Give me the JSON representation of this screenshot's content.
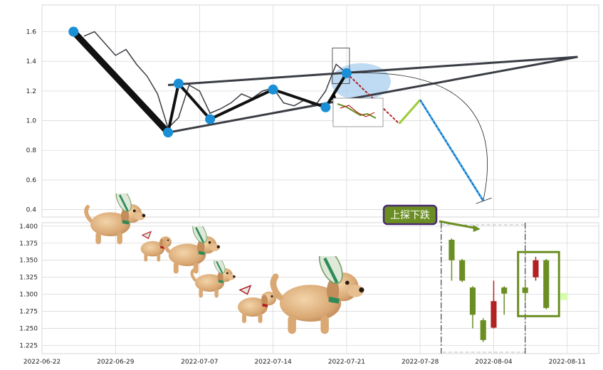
{
  "colors": {
    "grid": "#d9d9d9",
    "panel_bg": "#ffffff",
    "price_line": "#3a3d45",
    "zigzag": "#111111",
    "pivot": "#1b8fd6",
    "candle_up": "#6b8e23",
    "candle_down": "#b22222",
    "annot_bg": "#6b8e23",
    "annot_border": "#4b2a6e",
    "highlight": "#6b8e23",
    "bubble": "#a9cdef"
  },
  "icons": [
    "dog-sticker-icon",
    "bee-wing-icon",
    "mini-chart-thumbnail-icon"
  ],
  "chart_data": [
    {
      "type": "line",
      "panel": "top",
      "ylim": [
        0.35,
        1.78
      ],
      "yticks": [
        "0.4",
        "0.6",
        "0.8",
        "1.0",
        "1.2",
        "1.4",
        "1.6"
      ],
      "grid": true,
      "xlim": [
        "2022-06-22",
        "2022-08-14"
      ],
      "price_series": {
        "x": [
          "2022-06-26",
          "2022-06-27",
          "2022-06-28",
          "2022-06-29",
          "2022-06-30",
          "2022-07-01",
          "2022-07-02",
          "2022-07-03",
          "2022-07-04",
          "2022-07-05",
          "2022-07-06",
          "2022-07-07",
          "2022-07-08",
          "2022-07-09",
          "2022-07-10",
          "2022-07-11",
          "2022-07-12",
          "2022-07-13",
          "2022-07-14",
          "2022-07-15",
          "2022-07-16",
          "2022-07-17",
          "2022-07-18",
          "2022-07-19",
          "2022-07-20",
          "2022-07-21"
        ],
        "values": [
          1.57,
          1.6,
          1.52,
          1.44,
          1.48,
          1.38,
          1.3,
          1.18,
          0.95,
          1.02,
          1.24,
          1.2,
          1.05,
          1.08,
          1.12,
          1.18,
          1.15,
          1.2,
          1.22,
          1.12,
          1.1,
          1.14,
          1.1,
          1.2,
          1.38,
          1.32
        ]
      },
      "zigzag": {
        "x": [
          "2022-06-25",
          "2022-07-04",
          "2022-07-05",
          "2022-07-08",
          "2022-07-14",
          "2022-07-19",
          "2022-07-21"
        ],
        "values": [
          1.6,
          0.92,
          1.25,
          1.01,
          1.21,
          1.09,
          1.32
        ]
      },
      "trend_lines": [
        {
          "x": [
            "2022-07-04",
            "2022-08-12"
          ],
          "values": [
            1.24,
            1.43
          ]
        },
        {
          "x": [
            "2022-07-04",
            "2022-08-12"
          ],
          "values": [
            0.92,
            1.43
          ]
        }
      ],
      "projection": {
        "x": [
          "2022-07-21",
          "2022-07-26",
          "2022-07-28",
          "2022-08-03"
        ],
        "values": [
          1.32,
          0.98,
          1.14,
          0.46
        ]
      }
    },
    {
      "type": "candlestick",
      "panel": "bottom",
      "ylim": [
        1.213,
        1.405
      ],
      "yticks": [
        "1.225",
        "1.250",
        "1.275",
        "1.300",
        "1.325",
        "1.350",
        "1.375",
        "1.400"
      ],
      "xticks": [
        "2022-06-22",
        "2022-06-29",
        "2022-07-07",
        "2022-07-14",
        "2022-07-21",
        "2022-07-28",
        "2022-08-04",
        "2022-08-11"
      ],
      "grid": true,
      "candles": [
        {
          "date": "2022-07-31",
          "open": 1.35,
          "close": 1.38,
          "high": 1.382,
          "low": 1.32
        },
        {
          "date": "2022-08-01",
          "open": 1.32,
          "close": 1.35,
          "high": 1.352,
          "low": 1.318
        },
        {
          "date": "2022-08-02",
          "open": 1.27,
          "close": 1.31,
          "high": 1.312,
          "low": 1.25
        },
        {
          "date": "2022-08-03",
          "open": 1.233,
          "close": 1.262,
          "high": 1.265,
          "low": 1.23
        },
        {
          "date": "2022-08-04",
          "open": 1.29,
          "close": 1.251,
          "high": 1.32,
          "low": 1.25
        },
        {
          "date": "2022-08-05",
          "open": 1.301,
          "close": 1.31,
          "high": 1.312,
          "low": 1.27
        },
        {
          "date": "2022-08-07",
          "open": 1.302,
          "close": 1.31,
          "high": 1.32,
          "low": 1.29
        },
        {
          "date": "2022-08-08",
          "open": 1.35,
          "close": 1.325,
          "high": 1.355,
          "low": 1.32
        },
        {
          "date": "2022-08-09",
          "open": 1.28,
          "close": 1.35,
          "high": 1.352,
          "low": 1.278
        }
      ],
      "annotation": {
        "text": "上探下跌",
        "points_to": "2022-08-03"
      }
    }
  ]
}
